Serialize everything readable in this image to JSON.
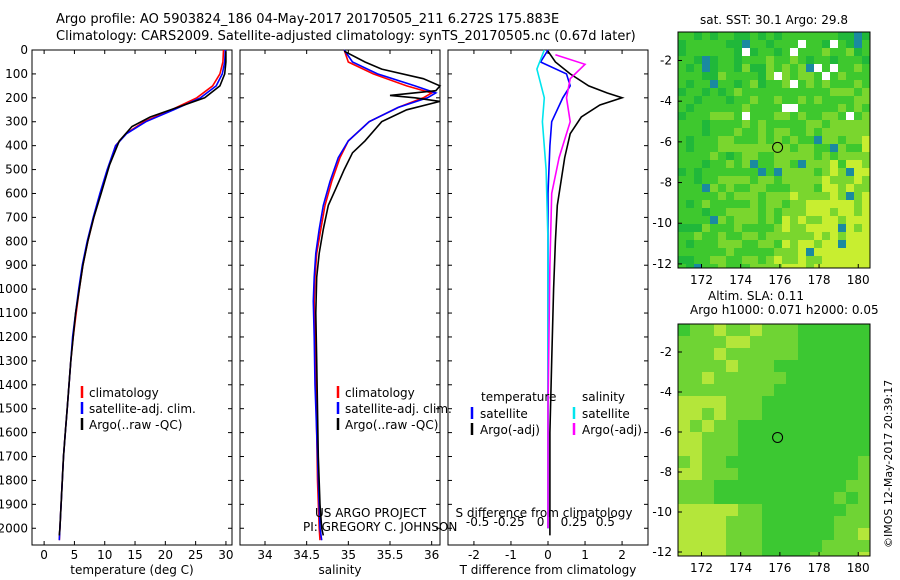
{
  "header": {
    "line1": "Argo profile: AO 5903824_186 04-May-2017 20170505_211 6.272S 175.883E",
    "line2": "Climatology: CARS2009. Satellite-adjusted climatology: synTS_20170505.nc (0.67d later)"
  },
  "sidebar_stamp": "©IMOS 12-May-2017 20:39:17",
  "credits": {
    "line1": "US ARGO PROJECT",
    "line2": "PI: GREGORY C. JOHNSON"
  },
  "colors": {
    "climatology": "#ff0000",
    "satellite": "#0000ff",
    "argo": "#000000",
    "sat_salinity": "#00e5ee",
    "argo_salinity": "#ff00ff"
  },
  "chart_data": [
    {
      "type": "line",
      "xlabel": "temperature (deg C)",
      "ylabel": "",
      "xlim": [
        -2,
        31
      ],
      "ylim": [
        2070,
        0
      ],
      "xticks": [
        0,
        5,
        10,
        15,
        20,
        25,
        30
      ],
      "yticks": [
        0,
        100,
        200,
        300,
        400,
        500,
        600,
        700,
        800,
        900,
        1000,
        1100,
        1200,
        1300,
        1400,
        1500,
        1600,
        1700,
        1800,
        1900,
        2000
      ],
      "legend": [
        "climatology",
        "satellite-adj. clim.",
        "Argo(..raw -QC)"
      ],
      "series": [
        {
          "name": "climatology",
          "color": "#ff0000",
          "points": [
            [
              29.6,
              0
            ],
            [
              29.5,
              50
            ],
            [
              29.0,
              100
            ],
            [
              27.8,
              150
            ],
            [
              25.2,
              200
            ],
            [
              21.0,
              250
            ],
            [
              16.5,
              300
            ],
            [
              13.5,
              350
            ],
            [
              11.8,
              400
            ],
            [
              10.5,
              500
            ],
            [
              9.3,
              600
            ],
            [
              8.2,
              700
            ],
            [
              7.2,
              800
            ],
            [
              6.4,
              900
            ],
            [
              5.8,
              1000
            ],
            [
              5.3,
              1100
            ],
            [
              4.8,
              1200
            ],
            [
              4.4,
              1300
            ],
            [
              4.1,
              1400
            ],
            [
              3.8,
              1500
            ],
            [
              3.5,
              1600
            ],
            [
              3.2,
              1700
            ],
            [
              3.0,
              1800
            ],
            [
              2.8,
              1900
            ],
            [
              2.6,
              2000
            ],
            [
              2.5,
              2050
            ]
          ]
        },
        {
          "name": "satellite-adj. clim.",
          "color": "#0000ff",
          "points": [
            [
              29.9,
              0
            ],
            [
              29.8,
              50
            ],
            [
              29.4,
              100
            ],
            [
              28.4,
              150
            ],
            [
              25.8,
              200
            ],
            [
              21.4,
              250
            ],
            [
              16.8,
              300
            ],
            [
              13.6,
              350
            ],
            [
              11.8,
              400
            ],
            [
              10.4,
              500
            ],
            [
              9.2,
              600
            ],
            [
              8.1,
              700
            ],
            [
              7.1,
              800
            ],
            [
              6.3,
              900
            ],
            [
              5.7,
              1000
            ],
            [
              5.2,
              1100
            ],
            [
              4.7,
              1200
            ],
            [
              4.4,
              1300
            ],
            [
              4.1,
              1400
            ],
            [
              3.8,
              1500
            ],
            [
              3.5,
              1600
            ],
            [
              3.2,
              1700
            ],
            [
              3.0,
              1800
            ],
            [
              2.8,
              1900
            ],
            [
              2.6,
              2000
            ],
            [
              2.5,
              2050
            ]
          ]
        },
        {
          "name": "Argo(..raw -QC)",
          "color": "#000000",
          "points": [
            [
              30.0,
              5
            ],
            [
              30.0,
              50
            ],
            [
              29.8,
              100
            ],
            [
              29.0,
              150
            ],
            [
              26.5,
              200
            ],
            [
              22.0,
              240
            ],
            [
              17.5,
              280
            ],
            [
              14.5,
              320
            ],
            [
              12.4,
              380
            ],
            [
              10.8,
              480
            ],
            [
              9.4,
              600
            ],
            [
              8.2,
              700
            ],
            [
              7.2,
              800
            ],
            [
              6.4,
              900
            ],
            [
              5.8,
              1000
            ],
            [
              5.2,
              1100
            ],
            [
              4.8,
              1200
            ],
            [
              4.4,
              1300
            ],
            [
              4.1,
              1400
            ],
            [
              3.8,
              1500
            ],
            [
              3.5,
              1600
            ],
            [
              3.2,
              1700
            ],
            [
              3.0,
              1800
            ],
            [
              2.8,
              1900
            ],
            [
              2.6,
              2000
            ],
            [
              2.5,
              2030
            ]
          ]
        }
      ]
    },
    {
      "type": "line",
      "xlabel": "salinity",
      "ylabel": "",
      "xlim": [
        33.7,
        36.1
      ],
      "ylim": [
        2070,
        0
      ],
      "xticks": [
        34,
        34.5,
        35,
        35.5,
        36
      ],
      "xticklabels": [
        "34",
        "34.5",
        "35",
        "35.5",
        "36"
      ],
      "legend": [
        "climatology",
        "satellite-adj. clim.",
        "Argo(..raw -QC)"
      ],
      "series": [
        {
          "name": "climatology",
          "color": "#ff0000",
          "points": [
            [
              34.95,
              0
            ],
            [
              35.0,
              50
            ],
            [
              35.3,
              100
            ],
            [
              35.7,
              150
            ],
            [
              36.0,
              180
            ],
            [
              35.9,
              200
            ],
            [
              35.6,
              240
            ],
            [
              35.25,
              300
            ],
            [
              35.0,
              380
            ],
            [
              34.9,
              450
            ],
            [
              34.8,
              550
            ],
            [
              34.72,
              650
            ],
            [
              34.67,
              750
            ],
            [
              34.62,
              850
            ],
            [
              34.6,
              950
            ],
            [
              34.59,
              1050
            ],
            [
              34.6,
              1200
            ],
            [
              34.61,
              1400
            ],
            [
              34.62,
              1600
            ],
            [
              34.63,
              1800
            ],
            [
              34.65,
              2000
            ],
            [
              34.66,
              2050
            ]
          ]
        },
        {
          "name": "satellite-adj. clim.",
          "color": "#0000ff",
          "points": [
            [
              34.95,
              0
            ],
            [
              35.05,
              50
            ],
            [
              35.35,
              100
            ],
            [
              35.8,
              150
            ],
            [
              36.05,
              180
            ],
            [
              35.95,
              200
            ],
            [
              35.6,
              240
            ],
            [
              35.25,
              300
            ],
            [
              35.0,
              380
            ],
            [
              34.88,
              450
            ],
            [
              34.78,
              550
            ],
            [
              34.7,
              650
            ],
            [
              34.65,
              750
            ],
            [
              34.61,
              850
            ],
            [
              34.59,
              950
            ],
            [
              34.58,
              1050
            ],
            [
              34.59,
              1200
            ],
            [
              34.6,
              1400
            ],
            [
              34.62,
              1600
            ],
            [
              34.64,
              1800
            ],
            [
              34.66,
              2000
            ],
            [
              34.68,
              2050
            ]
          ]
        },
        {
          "name": "Argo(..raw -QC)",
          "color": "#000000",
          "points": [
            [
              34.95,
              5
            ],
            [
              35.2,
              50
            ],
            [
              35.4,
              80
            ],
            [
              35.9,
              120
            ],
            [
              36.1,
              150
            ],
            [
              36.05,
              170
            ],
            [
              35.5,
              190
            ],
            [
              35.8,
              200
            ],
            [
              36.1,
              215
            ],
            [
              35.7,
              250
            ],
            [
              35.4,
              300
            ],
            [
              35.2,
              380
            ],
            [
              35.05,
              430
            ],
            [
              34.95,
              500
            ],
            [
              34.85,
              580
            ],
            [
              34.76,
              650
            ],
            [
              34.7,
              750
            ],
            [
              34.65,
              850
            ],
            [
              34.62,
              950
            ],
            [
              34.61,
              1100
            ],
            [
              34.62,
              1300
            ],
            [
              34.63,
              1500
            ],
            [
              34.64,
              1700
            ],
            [
              34.66,
              1900
            ],
            [
              34.68,
              2000
            ],
            [
              34.7,
              2030
            ]
          ]
        }
      ]
    },
    {
      "type": "line",
      "xlabel": "T difference from climatology",
      "xlabel2": "S difference from climatology",
      "xlim": [
        -2.7,
        2.7
      ],
      "ylim": [
        2070,
        0
      ],
      "xticks": [
        -2,
        -1,
        0,
        1,
        2
      ],
      "xticklabels": [
        "-2",
        "-1",
        "0",
        "1",
        "2"
      ],
      "sticks": [
        -1.9,
        -1.05,
        -0.2,
        0.7,
        1.55
      ],
      "sticklabels": [
        "-0.5",
        "-0.25",
        "0",
        "0.25",
        "0.5"
      ],
      "legend_left_title": "temperature",
      "legend_right_title": "salinity",
      "legend": [
        "satellite",
        "Argo(-adj)",
        "satellite",
        "Argo(-adj)"
      ],
      "series": [
        {
          "name": "satellite",
          "color": "#0000ff",
          "points": [
            [
              0,
              0
            ],
            [
              -0.2,
              50
            ],
            [
              0.5,
              100
            ],
            [
              0.6,
              150
            ],
            [
              0.4,
              200
            ],
            [
              0.1,
              300
            ],
            [
              0.05,
              400
            ],
            [
              0,
              600
            ],
            [
              0,
              1000
            ],
            [
              0,
              1500
            ],
            [
              0,
              2000
            ]
          ]
        },
        {
          "name": "Argo(-adj)",
          "color": "#000000",
          "points": [
            [
              0,
              5
            ],
            [
              0.2,
              50
            ],
            [
              0.6,
              100
            ],
            [
              1.1,
              150
            ],
            [
              1.6,
              180
            ],
            [
              2.0,
              200
            ],
            [
              1.4,
              230
            ],
            [
              0.9,
              280
            ],
            [
              0.6,
              350
            ],
            [
              0.45,
              450
            ],
            [
              0.35,
              550
            ],
            [
              0.25,
              650
            ],
            [
              0.2,
              800
            ],
            [
              0.15,
              1000
            ],
            [
              0.1,
              1300
            ],
            [
              0.05,
              1600
            ],
            [
              0.05,
              2030
            ]
          ]
        },
        {
          "name": "satellite",
          "color": "#00e5ee",
          "points": [
            [
              -0.1,
              0
            ],
            [
              -0.3,
              80
            ],
            [
              -0.1,
              200
            ],
            [
              -0.15,
              300
            ],
            [
              -0.05,
              500
            ],
            [
              0,
              800
            ],
            [
              0,
              1500
            ],
            [
              0,
              2000
            ]
          ]
        },
        {
          "name": "Argo(-adj)",
          "color": "#ff00ff",
          "points": [
            [
              0.2,
              20
            ],
            [
              1.0,
              60
            ],
            [
              0.6,
              120
            ],
            [
              0.5,
              200
            ],
            [
              0.6,
              300
            ],
            [
              0.3,
              450
            ],
            [
              0.1,
              600
            ],
            [
              0.05,
              900
            ],
            [
              0,
              1500
            ],
            [
              0,
              2000
            ]
          ]
        }
      ]
    },
    {
      "type": "heatmap",
      "title": "sat. SST: 30.1  Argo: 29.8",
      "xlim": [
        170.8,
        180.6
      ],
      "ylim": [
        -12.2,
        -0.6
      ],
      "xticks": [
        172,
        174,
        176,
        178,
        180
      ],
      "yticks": [
        -2,
        -4,
        -6,
        -8,
        -10,
        -12
      ],
      "marker": {
        "lon": 175.883,
        "lat": -6.272
      }
    },
    {
      "type": "heatmap",
      "title": "Altim. SLA: 0.11",
      "subtitle": "Argo h1000: 0.071 h2000: 0.05",
      "xlim": [
        170.8,
        180.6
      ],
      "ylim": [
        -12.2,
        -0.6
      ],
      "xticks": [
        172,
        174,
        176,
        178,
        180
      ],
      "yticks": [
        -2,
        -4,
        -6,
        -8,
        -10,
        -12
      ],
      "marker": {
        "lon": 175.883,
        "lat": -6.272
      }
    }
  ]
}
